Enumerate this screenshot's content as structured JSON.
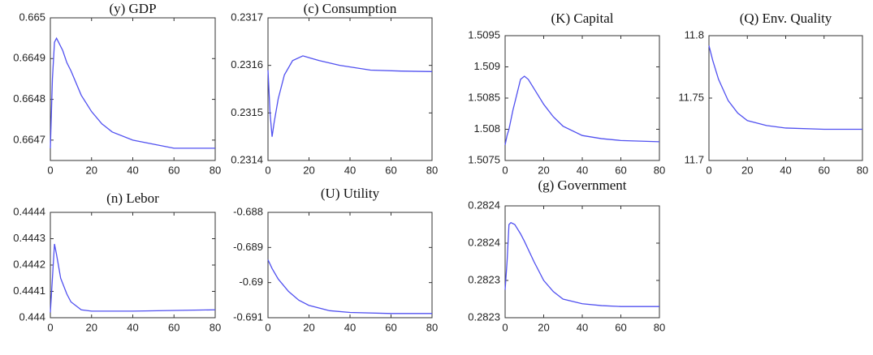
{
  "chart_data": [
    {
      "type": "line",
      "title": "(y) GDP",
      "color": "#5050f0",
      "x": [
        0,
        1,
        2,
        3,
        4,
        6,
        8,
        10,
        15,
        20,
        25,
        30,
        40,
        50,
        60,
        80
      ],
      "values": [
        0.66468,
        0.66485,
        0.66494,
        0.66495,
        0.66494,
        0.66492,
        0.66489,
        0.66487,
        0.66481,
        0.66477,
        0.66474,
        0.66472,
        0.6647,
        0.66469,
        0.66468,
        0.66468
      ],
      "xlim": [
        0,
        80
      ],
      "xticks": [
        0,
        20,
        40,
        60,
        80
      ],
      "ylim": [
        0.66465,
        0.665
      ],
      "yticks": [
        0.6647,
        0.6648,
        0.6649,
        0.665
      ]
    },
    {
      "type": "line",
      "title": "(c) Consumption",
      "color": "#5050f0",
      "x": [
        0,
        1,
        2,
        3,
        5,
        8,
        12,
        17,
        25,
        35,
        50,
        65,
        80
      ],
      "values": [
        0.23159,
        0.2315,
        0.23145,
        0.23148,
        0.23153,
        0.23158,
        0.23161,
        0.23162,
        0.23161,
        0.2316,
        0.23159,
        0.231588,
        0.231587
      ],
      "xlim": [
        0,
        80
      ],
      "xticks": [
        0,
        20,
        40,
        60,
        80
      ],
      "ylim": [
        0.2314,
        0.2317
      ],
      "yticks": [
        0.2314,
        0.2315,
        0.2316,
        0.2317
      ]
    },
    {
      "type": "line",
      "title": "(K) Capital",
      "color": "#5050f0",
      "x": [
        0,
        1,
        2,
        4,
        6,
        8,
        10,
        12,
        15,
        20,
        25,
        30,
        40,
        50,
        60,
        80
      ],
      "values": [
        1.50775,
        1.5079,
        1.508,
        1.5083,
        1.50855,
        1.5088,
        1.50885,
        1.5088,
        1.50865,
        1.5084,
        1.5082,
        1.50805,
        1.5079,
        1.50785,
        1.50782,
        1.5078
      ],
      "xlim": [
        0,
        80
      ],
      "xticks": [
        0,
        20,
        40,
        60,
        80
      ],
      "ylim": [
        1.5075,
        1.5095
      ],
      "yticks": [
        1.5075,
        1.508,
        1.5085,
        1.509,
        1.5095
      ]
    },
    {
      "type": "line",
      "title": "(Q) Env. Quality",
      "color": "#5050f0",
      "x": [
        0,
        2,
        5,
        10,
        15,
        20,
        30,
        40,
        60,
        80
      ],
      "values": [
        11.792,
        11.78,
        11.765,
        11.748,
        11.738,
        11.732,
        11.728,
        11.726,
        11.725,
        11.725
      ],
      "xlim": [
        0,
        80
      ],
      "xticks": [
        0,
        20,
        40,
        60,
        80
      ],
      "ylim": [
        11.7,
        11.8
      ],
      "yticks": [
        11.7,
        11.75,
        11.8
      ]
    },
    {
      "type": "line",
      "title": "(n) Lebor",
      "color": "#5050f0",
      "x": [
        0,
        1,
        2,
        3,
        5,
        8,
        10,
        15,
        20,
        40,
        80
      ],
      "values": [
        0.44402,
        0.44415,
        0.44428,
        0.44424,
        0.44415,
        0.44409,
        0.44406,
        0.44403,
        0.444025,
        0.444025,
        0.44403
      ],
      "xlim": [
        0,
        80
      ],
      "xticks": [
        0,
        20,
        40,
        60,
        80
      ],
      "ylim": [
        0.444,
        0.4444
      ],
      "yticks": [
        0.444,
        0.4441,
        0.4442,
        0.4443,
        0.4444
      ]
    },
    {
      "type": "line",
      "title": "(U) Utility",
      "color": "#5050f0",
      "x": [
        0,
        2,
        5,
        10,
        15,
        20,
        30,
        40,
        60,
        80
      ],
      "values": [
        -0.68935,
        -0.6896,
        -0.6899,
        -0.69025,
        -0.6905,
        -0.69065,
        -0.6908,
        -0.69085,
        -0.69088,
        -0.69088
      ],
      "xlim": [
        0,
        80
      ],
      "xticks": [
        0,
        20,
        40,
        60,
        80
      ],
      "ylim": [
        -0.691,
        -0.688
      ],
      "yticks": [
        -0.691,
        -0.69,
        -0.689,
        -0.688
      ]
    },
    {
      "type": "line",
      "title": "(g) Government",
      "color": "#5050f0",
      "x": [
        0,
        1,
        2,
        3,
        5,
        8,
        10,
        15,
        20,
        25,
        30,
        40,
        50,
        60,
        80
      ],
      "values": [
        0.28231,
        0.28234,
        0.28238,
        0.282382,
        0.28238,
        0.28237,
        0.282362,
        0.28234,
        0.28232,
        0.282308,
        0.2823,
        0.282295,
        0.282293,
        0.282292,
        0.282292
      ],
      "xlim": [
        0,
        80
      ],
      "xticks": [
        0,
        20,
        40,
        60,
        80
      ],
      "ylim": [
        0.28228,
        0.2824
      ],
      "yticks": [
        {
          "value": 0.28228,
          "label": "0.2823"
        },
        {
          "value": 0.28232,
          "label": "0.2823"
        },
        {
          "value": 0.28236,
          "label": "0.2824"
        },
        {
          "value": 0.2824,
          "label": "0.2824"
        }
      ]
    }
  ]
}
